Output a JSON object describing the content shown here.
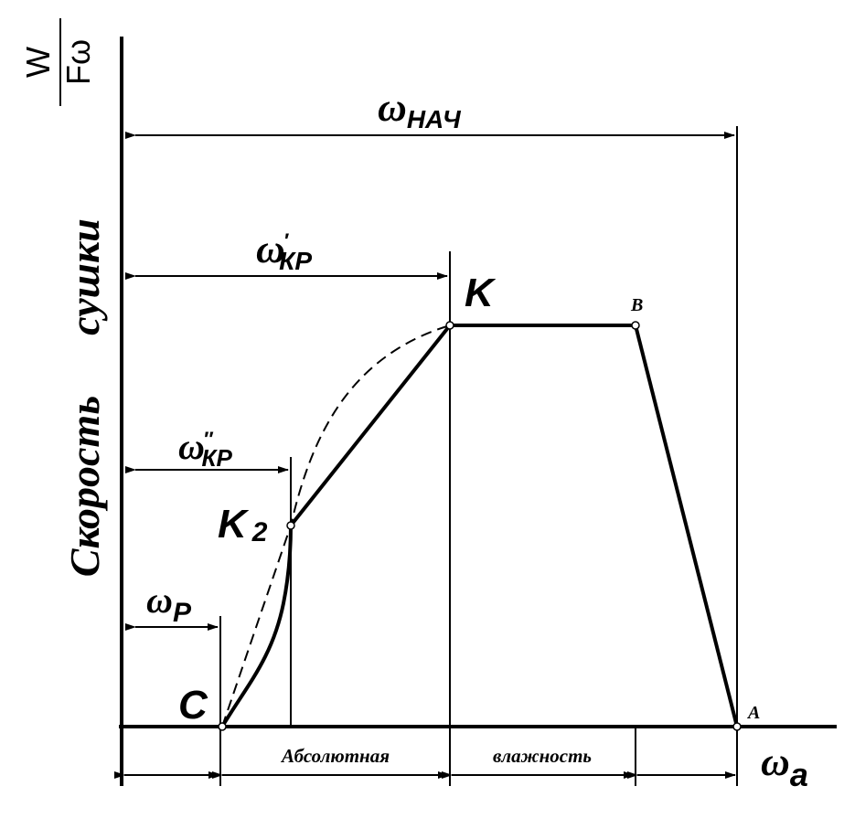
{
  "chart_data": {
    "type": "line",
    "title": "",
    "xlabel": {
      "main": "ω",
      "sub": "a"
    },
    "ylabel": {
      "line1": "Скорость",
      "line2": "сушки"
    },
    "y_fraction": {
      "num": "W",
      "den": "Fω"
    },
    "x_axis_words": [
      "Абсолютная",
      "влажность"
    ],
    "points": [
      {
        "name": "C",
        "label": "C",
        "sub": ""
      },
      {
        "name": "K2",
        "label": "K",
        "sub": "2"
      },
      {
        "name": "K",
        "label": "K",
        "sub": ""
      },
      {
        "name": "B",
        "label": "B",
        "sub": ""
      },
      {
        "name": "A",
        "label": "A",
        "sub": ""
      }
    ],
    "dimensions": [
      {
        "name": "omega-nach",
        "main": "ω",
        "sub": "НАЧ",
        "prime": ""
      },
      {
        "name": "omega-kr-prime",
        "main": "ω",
        "sub": "КР",
        "prime": "′"
      },
      {
        "name": "omega-kr-dprime",
        "main": "ω",
        "sub": "КР",
        "prime": "″"
      },
      {
        "name": "omega-p",
        "main": "ω",
        "sub": "Р",
        "prime": ""
      }
    ]
  }
}
